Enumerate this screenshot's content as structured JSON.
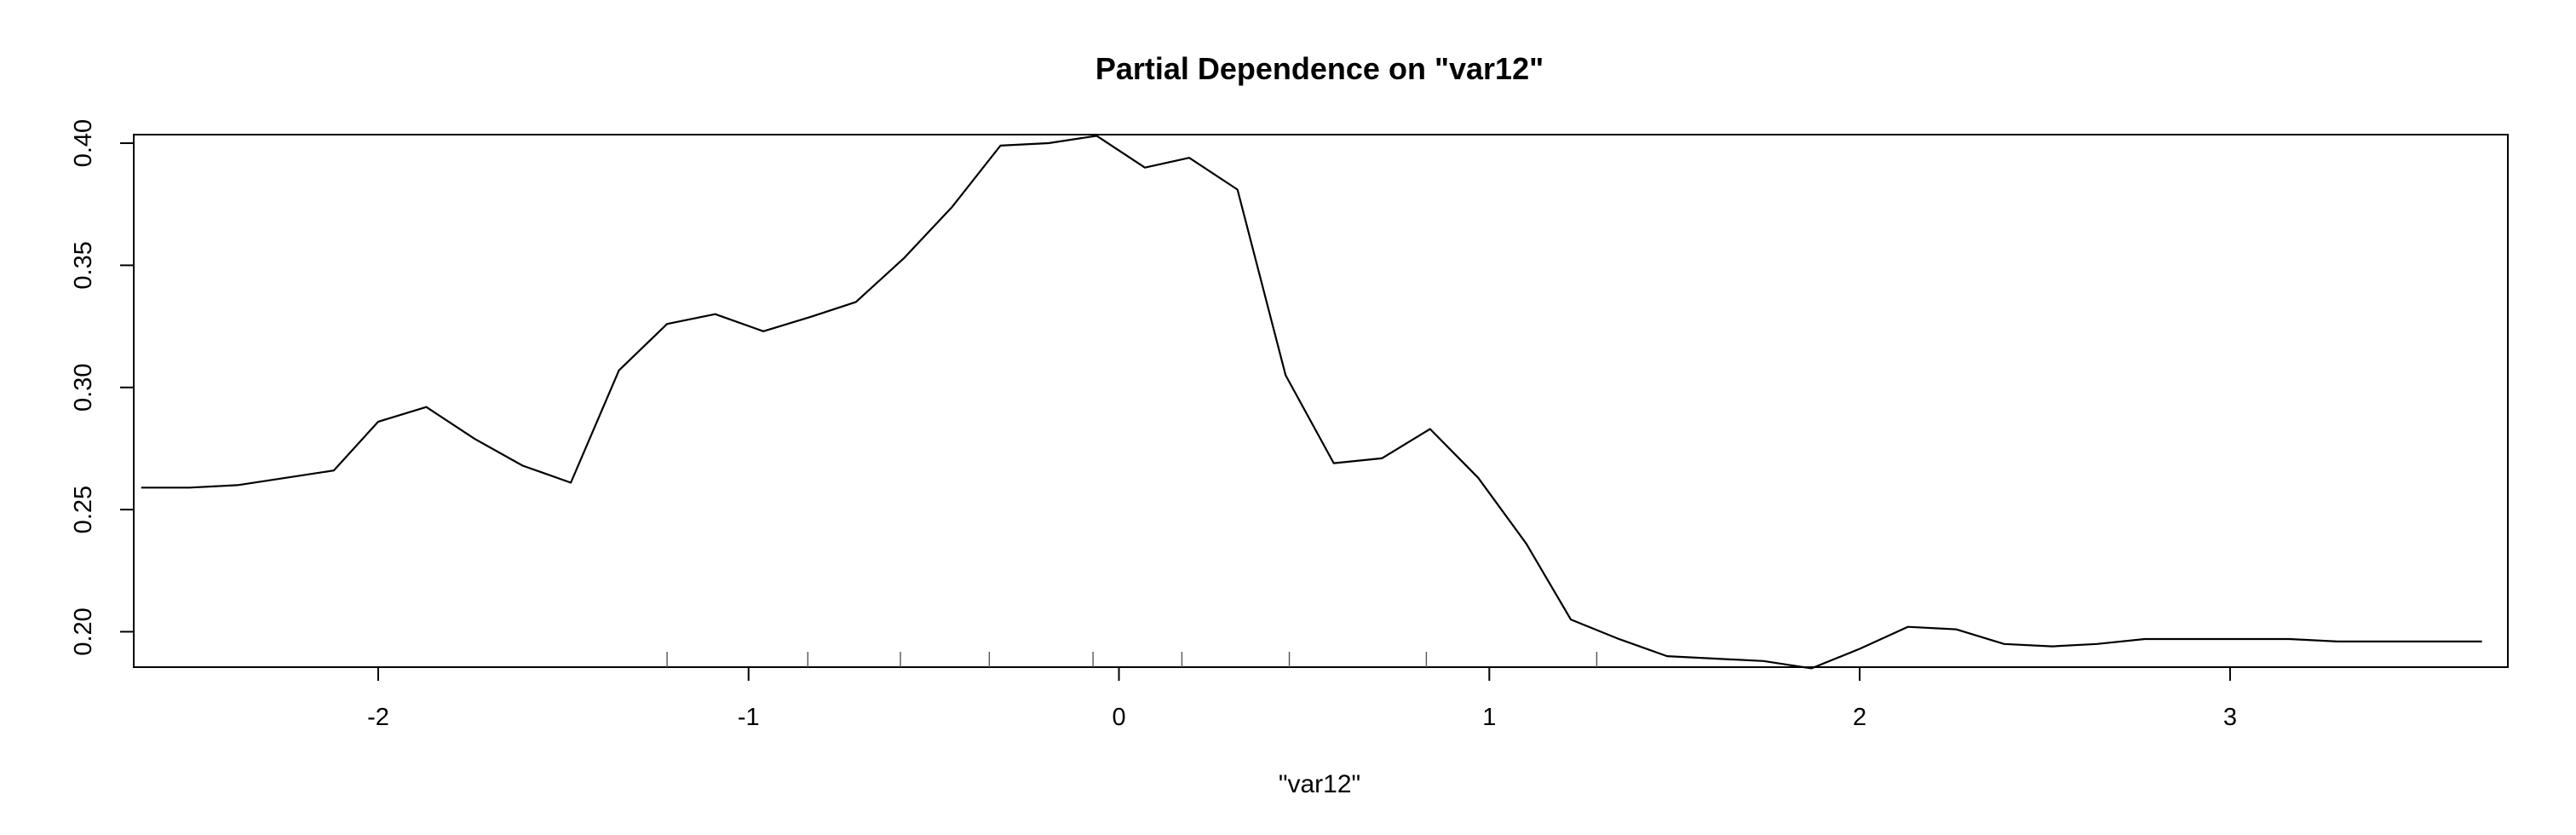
{
  "chart_data": {
    "type": "line",
    "title": "Partial Dependence on \"var12\"",
    "xlabel": "\"var12\"",
    "ylabel": "",
    "xlim": [
      -2.66,
      3.75
    ],
    "ylim": [
      0.1855,
      0.4035
    ],
    "x_ticks": [
      -2,
      -1,
      0,
      1,
      2,
      3
    ],
    "x_tick_labels": [
      "-2",
      "-1",
      "0",
      "1",
      "2",
      "3"
    ],
    "y_ticks": [
      0.2,
      0.25,
      0.3,
      0.35,
      0.4
    ],
    "y_tick_labels": [
      "0.20",
      "0.25",
      "0.30",
      "0.35",
      "0.40"
    ],
    "grid": false,
    "legend": "none",
    "line_color": "#000000",
    "rug": [
      -1.22,
      -0.84,
      -0.59,
      -0.35,
      -0.07,
      0.17,
      0.46,
      0.83,
      1.29
    ],
    "series": [
      {
        "x": [
          -2.64,
          -2.51,
          -2.38,
          -2.25,
          -2.12,
          -2.0,
          -1.87,
          -1.74,
          -1.61,
          -1.48,
          -1.35,
          -1.22,
          -1.09,
          -0.96,
          -0.83,
          -0.71,
          -0.58,
          -0.45,
          -0.32,
          -0.19,
          -0.06,
          0.07,
          0.19,
          0.32,
          0.45,
          0.58,
          0.71,
          0.84,
          0.97,
          1.1,
          1.22,
          1.35,
          1.48,
          1.61,
          1.74,
          1.87,
          2.0,
          2.13,
          2.26,
          2.39,
          2.52,
          2.64,
          2.77,
          2.9,
          3.03,
          3.16,
          3.29,
          3.42,
          3.55,
          3.68
        ],
        "y": [
          0.259,
          0.259,
          0.26,
          0.263,
          0.266,
          0.286,
          0.292,
          0.279,
          0.268,
          0.261,
          0.307,
          0.326,
          0.33,
          0.323,
          0.329,
          0.335,
          0.353,
          0.374,
          0.399,
          0.4,
          0.403,
          0.39,
          0.394,
          0.381,
          0.305,
          0.269,
          0.271,
          0.283,
          0.263,
          0.236,
          0.205,
          0.197,
          0.19,
          0.189,
          0.188,
          0.185,
          0.193,
          0.202,
          0.201,
          0.195,
          0.194,
          0.195,
          0.197,
          0.197,
          0.197,
          0.197,
          0.196,
          0.196,
          0.196,
          0.196
        ]
      }
    ]
  }
}
